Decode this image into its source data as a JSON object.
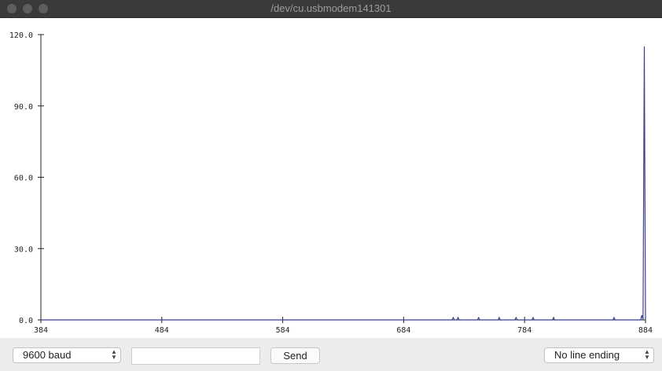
{
  "window": {
    "title": "/dev/cu.usbmodem141301"
  },
  "controls": {
    "baud": "9600 baud",
    "input_value": "",
    "send_label": "Send",
    "line_ending": "No line ending"
  },
  "colors": {
    "series": "#3f3f8f",
    "axis": "#222222",
    "titlebar": "#3a3a3c"
  },
  "chart_data": {
    "type": "line",
    "title": "",
    "xlabel": "",
    "ylabel": "",
    "xlim": [
      384,
      884
    ],
    "ylim": [
      0,
      120
    ],
    "x_ticks": [
      384,
      484,
      584,
      684,
      784,
      884
    ],
    "x_tick_labels": [
      "384",
      "484",
      "584",
      "684",
      "784",
      "884"
    ],
    "y_ticks": [
      0,
      30,
      60,
      90,
      120
    ],
    "y_tick_labels": [
      "0.0",
      "30.0",
      "60.0",
      "90.0",
      "120.0"
    ],
    "grid": false,
    "series": [
      {
        "x": [
          384,
          724,
          725,
          726,
          728,
          729,
          730,
          745,
          746,
          747,
          762,
          763,
          764,
          776,
          777,
          778,
          790,
          791,
          792,
          807,
          808,
          809,
          857,
          858,
          859,
          880,
          881,
          882,
          883,
          884
        ],
        "y": [
          0,
          0,
          1,
          0,
          0,
          1,
          0,
          0,
          1,
          0,
          0,
          1,
          0,
          0,
          1,
          0,
          0,
          1,
          0,
          0,
          1,
          0,
          0,
          1,
          0,
          0,
          2,
          0,
          115,
          0
        ]
      }
    ]
  }
}
